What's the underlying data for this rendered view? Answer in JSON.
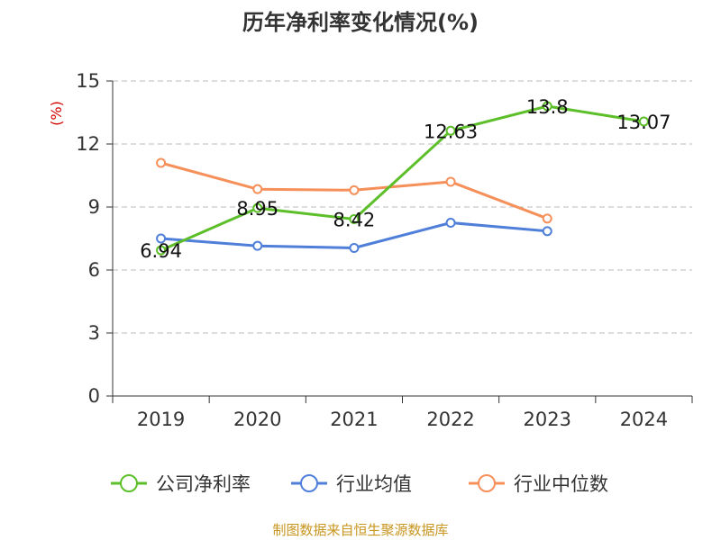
{
  "chart_data": {
    "type": "line",
    "title": "历年净利率变化情况(%)",
    "ylabel": "(%)",
    "categories": [
      "2019",
      "2020",
      "2021",
      "2022",
      "2023",
      "2024"
    ],
    "ylim": [
      0,
      15
    ],
    "yticks": [
      0,
      3,
      6,
      9,
      12,
      15
    ],
    "grid": true,
    "legend_position": "bottom",
    "series": [
      {
        "name": "公司净利率",
        "color": "#5cbf2a",
        "values": [
          6.94,
          8.95,
          8.42,
          12.63,
          13.8,
          13.07
        ],
        "labels": [
          "6.94",
          "8.95",
          "8.42",
          "12.63",
          "13.8",
          "13.07"
        ]
      },
      {
        "name": "行业均值",
        "color": "#4f7fd9",
        "values": [
          7.5,
          7.15,
          7.05,
          8.25,
          7.85,
          null
        ]
      },
      {
        "name": "行业中位数",
        "color": "#f5905a",
        "values": [
          11.1,
          9.85,
          9.8,
          10.2,
          8.45,
          null
        ]
      }
    ]
  },
  "source": "制图数据来自恒生聚源数据库"
}
